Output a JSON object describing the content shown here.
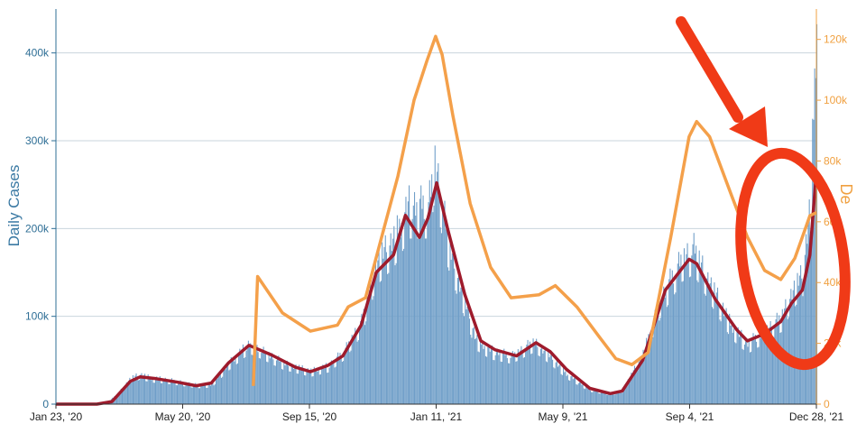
{
  "chart_data": {
    "type": "bar",
    "title": "",
    "xlabel": "",
    "ylabel": "Daily Cases",
    "y2label": "De",
    "x_tick_labels": [
      "Jan 23, '20",
      "May 20, '20",
      "Sep 15, '20",
      "Jan 11, '21",
      "May 9, '21",
      "Sep 4, '21",
      "Dec 28, '21"
    ],
    "x_range": [
      "2020-01-23",
      "2021-12-28"
    ],
    "ylim": [
      0,
      450000
    ],
    "y_ticks": [
      0,
      100000,
      200000,
      300000,
      400000
    ],
    "y_tick_labels": [
      "0",
      "100k",
      "200k",
      "300k",
      "400k"
    ],
    "y2lim": [
      0,
      130000
    ],
    "y2_ticks": [
      0,
      20000,
      40000,
      60000,
      80000,
      100000,
      120000
    ],
    "y2_tick_labels": [
      "0",
      "20k",
      "40k",
      "60k",
      "80k",
      "100k",
      "120k"
    ],
    "grid": true,
    "colors": {
      "bars": "#6f9ec8",
      "cases_avg": "#9e1b2c",
      "secondary": "#f4a04a",
      "left_axis": "#2f6f96",
      "right_axis": "#f0a040",
      "annotation": "#f03a17"
    },
    "series": [
      {
        "kind": "bars",
        "axis": "left",
        "points": [
          [
            "2020-01-23",
            0
          ],
          [
            "2020-03-01",
            0
          ],
          [
            "2020-03-10",
            1500
          ],
          [
            "2020-03-20",
            12000
          ],
          [
            "2020-04-01",
            30000
          ],
          [
            "2020-04-10",
            34000
          ],
          [
            "2020-04-20",
            30000
          ],
          [
            "2020-05-01",
            29000
          ],
          [
            "2020-05-15",
            26000
          ],
          [
            "2020-06-01",
            22000
          ],
          [
            "2020-06-15",
            23000
          ],
          [
            "2020-07-01",
            47000
          ],
          [
            "2020-07-20",
            70000
          ],
          [
            "2020-08-01",
            62000
          ],
          [
            "2020-08-20",
            48000
          ],
          [
            "2020-09-01",
            43000
          ],
          [
            "2020-09-15",
            38000
          ],
          [
            "2020-10-01",
            44000
          ],
          [
            "2020-10-15",
            60000
          ],
          [
            "2020-11-01",
            95000
          ],
          [
            "2020-11-15",
            165000
          ],
          [
            "2020-12-01",
            190000
          ],
          [
            "2020-12-15",
            230000
          ],
          [
            "2021-01-02",
            230000
          ],
          [
            "2021-01-08",
            285000
          ],
          [
            "2021-01-20",
            190000
          ],
          [
            "2021-02-01",
            135000
          ],
          [
            "2021-02-15",
            75000
          ],
          [
            "2021-03-01",
            62000
          ],
          [
            "2021-03-20",
            56000
          ],
          [
            "2021-04-10",
            72000
          ],
          [
            "2021-04-25",
            55000
          ],
          [
            "2021-05-10",
            35000
          ],
          [
            "2021-06-01",
            17000
          ],
          [
            "2021-06-20",
            12000
          ],
          [
            "2021-07-01",
            16000
          ],
          [
            "2021-07-20",
            58000
          ],
          [
            "2021-08-05",
            120000
          ],
          [
            "2021-08-25",
            170000
          ],
          [
            "2021-09-05",
            180000
          ],
          [
            "2021-09-20",
            140000
          ],
          [
            "2021-10-10",
            90000
          ],
          [
            "2021-10-25",
            70000
          ],
          [
            "2021-11-10",
            85000
          ],
          [
            "2021-11-25",
            100000
          ],
          [
            "2021-12-05",
            130000
          ],
          [
            "2021-12-15",
            150000
          ],
          [
            "2021-12-22",
            230000
          ],
          [
            "2021-12-28",
            440000
          ]
        ]
      },
      {
        "kind": "line",
        "axis": "left",
        "name": "",
        "points": [
          [
            "2020-01-23",
            0
          ],
          [
            "2020-03-01",
            0
          ],
          [
            "2020-03-15",
            3000
          ],
          [
            "2020-04-01",
            26000
          ],
          [
            "2020-04-10",
            31000
          ],
          [
            "2020-04-25",
            29000
          ],
          [
            "2020-05-15",
            25000
          ],
          [
            "2020-06-01",
            21000
          ],
          [
            "2020-06-15",
            24000
          ],
          [
            "2020-07-01",
            47000
          ],
          [
            "2020-07-20",
            67000
          ],
          [
            "2020-08-10",
            56000
          ],
          [
            "2020-09-01",
            42000
          ],
          [
            "2020-09-15",
            37000
          ],
          [
            "2020-10-01",
            44000
          ],
          [
            "2020-10-15",
            55000
          ],
          [
            "2020-11-01",
            90000
          ],
          [
            "2020-11-15",
            150000
          ],
          [
            "2020-12-01",
            170000
          ],
          [
            "2020-12-12",
            215000
          ],
          [
            "2020-12-25",
            190000
          ],
          [
            "2021-01-02",
            212000
          ],
          [
            "2021-01-10",
            252000
          ],
          [
            "2021-01-20",
            200000
          ],
          [
            "2021-02-05",
            125000
          ],
          [
            "2021-02-20",
            72000
          ],
          [
            "2021-03-05",
            62000
          ],
          [
            "2021-03-25",
            55000
          ],
          [
            "2021-04-12",
            70000
          ],
          [
            "2021-04-25",
            60000
          ],
          [
            "2021-05-10",
            40000
          ],
          [
            "2021-06-01",
            18000
          ],
          [
            "2021-06-20",
            12000
          ],
          [
            "2021-07-01",
            15000
          ],
          [
            "2021-07-20",
            50000
          ],
          [
            "2021-08-10",
            130000
          ],
          [
            "2021-09-01",
            165000
          ],
          [
            "2021-09-08",
            160000
          ],
          [
            "2021-09-25",
            120000
          ],
          [
            "2021-10-15",
            85000
          ],
          [
            "2021-10-25",
            72000
          ],
          [
            "2021-11-10",
            80000
          ],
          [
            "2021-11-25",
            94000
          ],
          [
            "2021-12-05",
            115000
          ],
          [
            "2021-12-15",
            130000
          ],
          [
            "2021-12-22",
            170000
          ],
          [
            "2021-12-28",
            265000
          ]
        ]
      },
      {
        "kind": "line",
        "axis": "right",
        "name": "",
        "points": [
          [
            "2020-07-24",
            6000
          ],
          [
            "2020-07-28",
            42000
          ],
          [
            "2020-08-20",
            30000
          ],
          [
            "2020-09-15",
            24000
          ],
          [
            "2020-10-10",
            26000
          ],
          [
            "2020-10-20",
            32000
          ],
          [
            "2020-11-05",
            35000
          ],
          [
            "2020-11-20",
            55000
          ],
          [
            "2020-12-05",
            75000
          ],
          [
            "2020-12-20",
            100000
          ],
          [
            "2021-01-01",
            113000
          ],
          [
            "2021-01-09",
            121000
          ],
          [
            "2021-01-15",
            115000
          ],
          [
            "2021-01-25",
            95000
          ],
          [
            "2021-02-10",
            66000
          ],
          [
            "2021-03-01",
            45000
          ],
          [
            "2021-03-20",
            35000
          ],
          [
            "2021-04-15",
            36000
          ],
          [
            "2021-04-30",
            39000
          ],
          [
            "2021-05-20",
            32000
          ],
          [
            "2021-06-10",
            22000
          ],
          [
            "2021-06-25",
            15000
          ],
          [
            "2021-07-10",
            13000
          ],
          [
            "2021-07-25",
            17000
          ],
          [
            "2021-08-15",
            55000
          ],
          [
            "2021-09-01",
            88000
          ],
          [
            "2021-09-08",
            93000
          ],
          [
            "2021-09-20",
            88000
          ],
          [
            "2021-10-10",
            69000
          ],
          [
            "2021-10-25",
            55000
          ],
          [
            "2021-11-10",
            44000
          ],
          [
            "2021-11-25",
            41000
          ],
          [
            "2021-12-08",
            48000
          ],
          [
            "2021-12-15",
            55000
          ],
          [
            "2021-12-22",
            62000
          ],
          [
            "2021-12-28",
            63000
          ]
        ]
      }
    ],
    "annotations": [
      {
        "type": "arrow",
        "color": "#f03a17"
      },
      {
        "type": "ellipse",
        "color": "#f03a17"
      }
    ]
  }
}
